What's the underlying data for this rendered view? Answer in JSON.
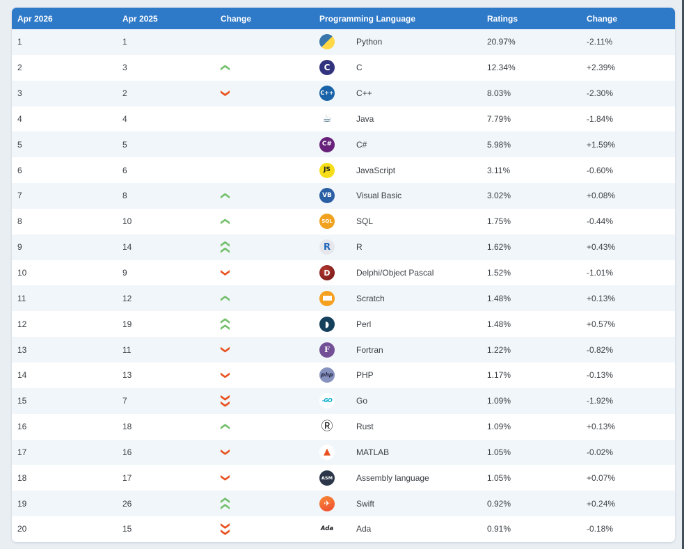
{
  "page": {
    "background": "#e9eef3",
    "right_edge_color": "#42505a"
  },
  "table": {
    "header": {
      "col_rank": "Apr 2026",
      "col_prev": "Apr 2025",
      "col_change": "Change",
      "col_language": "Programming Language",
      "col_ratings": "Ratings",
      "col_change2": "Change",
      "bg": "#2e79c8",
      "text_color": "#ffffff"
    },
    "colors": {
      "row_odd": "#f1f6fa",
      "row_even": "#ffffff",
      "up_arrow": "#72bf6a",
      "down_arrow": "#e8511e"
    },
    "rows": [
      {
        "rank": "1",
        "prev": "1",
        "trend": "none",
        "language": "Python",
        "rating": "20.97%",
        "change": "-2.11%",
        "icon": {
          "name": "python-icon",
          "text": "",
          "style": "background:linear-gradient(135deg,#3876ab 50%,#ffd845 50%);"
        }
      },
      {
        "rank": "2",
        "prev": "3",
        "trend": "up",
        "language": "C",
        "rating": "12.34%",
        "change": "+2.39%",
        "icon": {
          "name": "c-icon",
          "text": "C",
          "style": "background:#32337f;color:#fff;font-size:12px;"
        }
      },
      {
        "rank": "3",
        "prev": "2",
        "trend": "down",
        "language": "C++",
        "rating": "8.03%",
        "change": "-2.30%",
        "icon": {
          "name": "cpp-icon",
          "text": "C++",
          "style": "background:#1a63a8;color:#fff;font-size:8px;"
        }
      },
      {
        "rank": "4",
        "prev": "4",
        "trend": "none",
        "language": "Java",
        "rating": "7.79%",
        "change": "-1.84%",
        "icon": {
          "name": "java-icon",
          "text": "☕",
          "style": "background:#fff;color:#54798f;font-size:15px;font-weight:normal;"
        }
      },
      {
        "rank": "5",
        "prev": "5",
        "trend": "none",
        "language": "C#",
        "rating": "5.98%",
        "change": "+1.59%",
        "icon": {
          "name": "csharp-icon",
          "text": "C#",
          "style": "background:#67217a;color:#fff;font-size:9px;"
        }
      },
      {
        "rank": "6",
        "prev": "6",
        "trend": "none",
        "language": "JavaScript",
        "rating": "3.11%",
        "change": "-0.60%",
        "icon": {
          "name": "javascript-icon",
          "text": "JS",
          "style": "background:#f5de19;color:#1c1c1c;font-size:9px;"
        }
      },
      {
        "rank": "7",
        "prev": "8",
        "trend": "up",
        "language": "Visual Basic",
        "rating": "3.02%",
        "change": "+0.08%",
        "icon": {
          "name": "visual-basic-icon",
          "text": "VB",
          "style": "background:#2b5fa5;color:#fff;font-size:9px;"
        }
      },
      {
        "rank": "8",
        "prev": "10",
        "trend": "up",
        "language": "SQL",
        "rating": "1.75%",
        "change": "-0.44%",
        "icon": {
          "name": "sql-icon",
          "text": "SQL",
          "style": "background:#f0a11d;color:#fff;font-size:7px;"
        }
      },
      {
        "rank": "9",
        "prev": "14",
        "trend": "up2",
        "language": "R",
        "rating": "1.62%",
        "change": "+0.43%",
        "icon": {
          "name": "r-icon",
          "text": "R",
          "style": "background:#e6e7ec;color:#2065ba;font-size:13px;"
        }
      },
      {
        "rank": "10",
        "prev": "9",
        "trend": "down",
        "language": "Delphi/Object Pascal",
        "rating": "1.52%",
        "change": "-1.01%",
        "icon": {
          "name": "delphi-icon",
          "text": "D",
          "style": "background:radial-gradient(circle at 38% 35%,#b43a31,#6e1212);color:#fff;font-size:11px;"
        }
      },
      {
        "rank": "11",
        "prev": "12",
        "trend": "up",
        "language": "Scratch",
        "rating": "1.48%",
        "change": "+0.13%",
        "icon": {
          "name": "scratch-icon",
          "text": "",
          "style": "background-color:#f5a01e;background-image:linear-gradient(#fff,#fff);background-size:13px 7px;background-position:center;background-repeat:no-repeat;"
        }
      },
      {
        "rank": "12",
        "prev": "19",
        "trend": "up2",
        "language": "Perl",
        "rating": "1.48%",
        "change": "+0.57%",
        "icon": {
          "name": "perl-icon",
          "text": "◗",
          "style": "background:#14405c;color:#fff;font-size:12px;font-weight:normal;"
        }
      },
      {
        "rank": "13",
        "prev": "11",
        "trend": "down",
        "language": "Fortran",
        "rating": "1.22%",
        "change": "-0.82%",
        "icon": {
          "name": "fortran-icon",
          "text": "F",
          "style": "background:#734f96;color:#fff;font-size:11px;font-family:'DejaVu Serif',serif;"
        }
      },
      {
        "rank": "14",
        "prev": "13",
        "trend": "down",
        "language": "PHP",
        "rating": "1.17%",
        "change": "-0.13%",
        "icon": {
          "name": "php-icon",
          "text": "php",
          "style": "background:#8892bf;color:#1f2440;font-size:8px;font-style:italic;"
        }
      },
      {
        "rank": "15",
        "prev": "7",
        "trend": "down2",
        "language": "Go",
        "rating": "1.09%",
        "change": "-1.92%",
        "icon": {
          "name": "go-icon",
          "text": "-GO",
          "style": "background:#fff;color:#00a9d1;font-size:7.5px;font-style:italic;letter-spacing:-0.5px;"
        }
      },
      {
        "rank": "16",
        "prev": "18",
        "trend": "up",
        "language": "Rust",
        "rating": "1.09%",
        "change": "+0.13%",
        "icon": {
          "name": "rust-icon",
          "text": "Ⓡ",
          "style": "background:#fff;color:#111;font-size:17px;font-weight:normal;"
        }
      },
      {
        "rank": "17",
        "prev": "16",
        "trend": "down",
        "language": "MATLAB",
        "rating": "1.05%",
        "change": "-0.02%",
        "icon": {
          "name": "matlab-icon",
          "text": "▲",
          "style": "background:#fff;color:#e8501f;font-size:13px;"
        }
      },
      {
        "rank": "18",
        "prev": "17",
        "trend": "down",
        "language": "Assembly language",
        "rating": "1.05%",
        "change": "+0.07%",
        "icon": {
          "name": "assembly-icon",
          "text": "ASM",
          "style": "background:#2b3648;color:#fff;font-size:6.5px;"
        }
      },
      {
        "rank": "19",
        "prev": "26",
        "trend": "up2",
        "language": "Swift",
        "rating": "0.92%",
        "change": "+0.24%",
        "icon": {
          "name": "swift-icon",
          "text": "✈",
          "style": "background:linear-gradient(160deg,#f88a36,#ee4c31);color:#fff;font-size:11px;font-weight:normal;"
        }
      },
      {
        "rank": "20",
        "prev": "15",
        "trend": "down2",
        "language": "Ada",
        "rating": "0.91%",
        "change": "-0.18%",
        "icon": {
          "name": "ada-icon",
          "text": "Ada",
          "style": "background:transparent;color:#16181c;font-size:8.5px;font-style:italic;"
        }
      }
    ]
  }
}
